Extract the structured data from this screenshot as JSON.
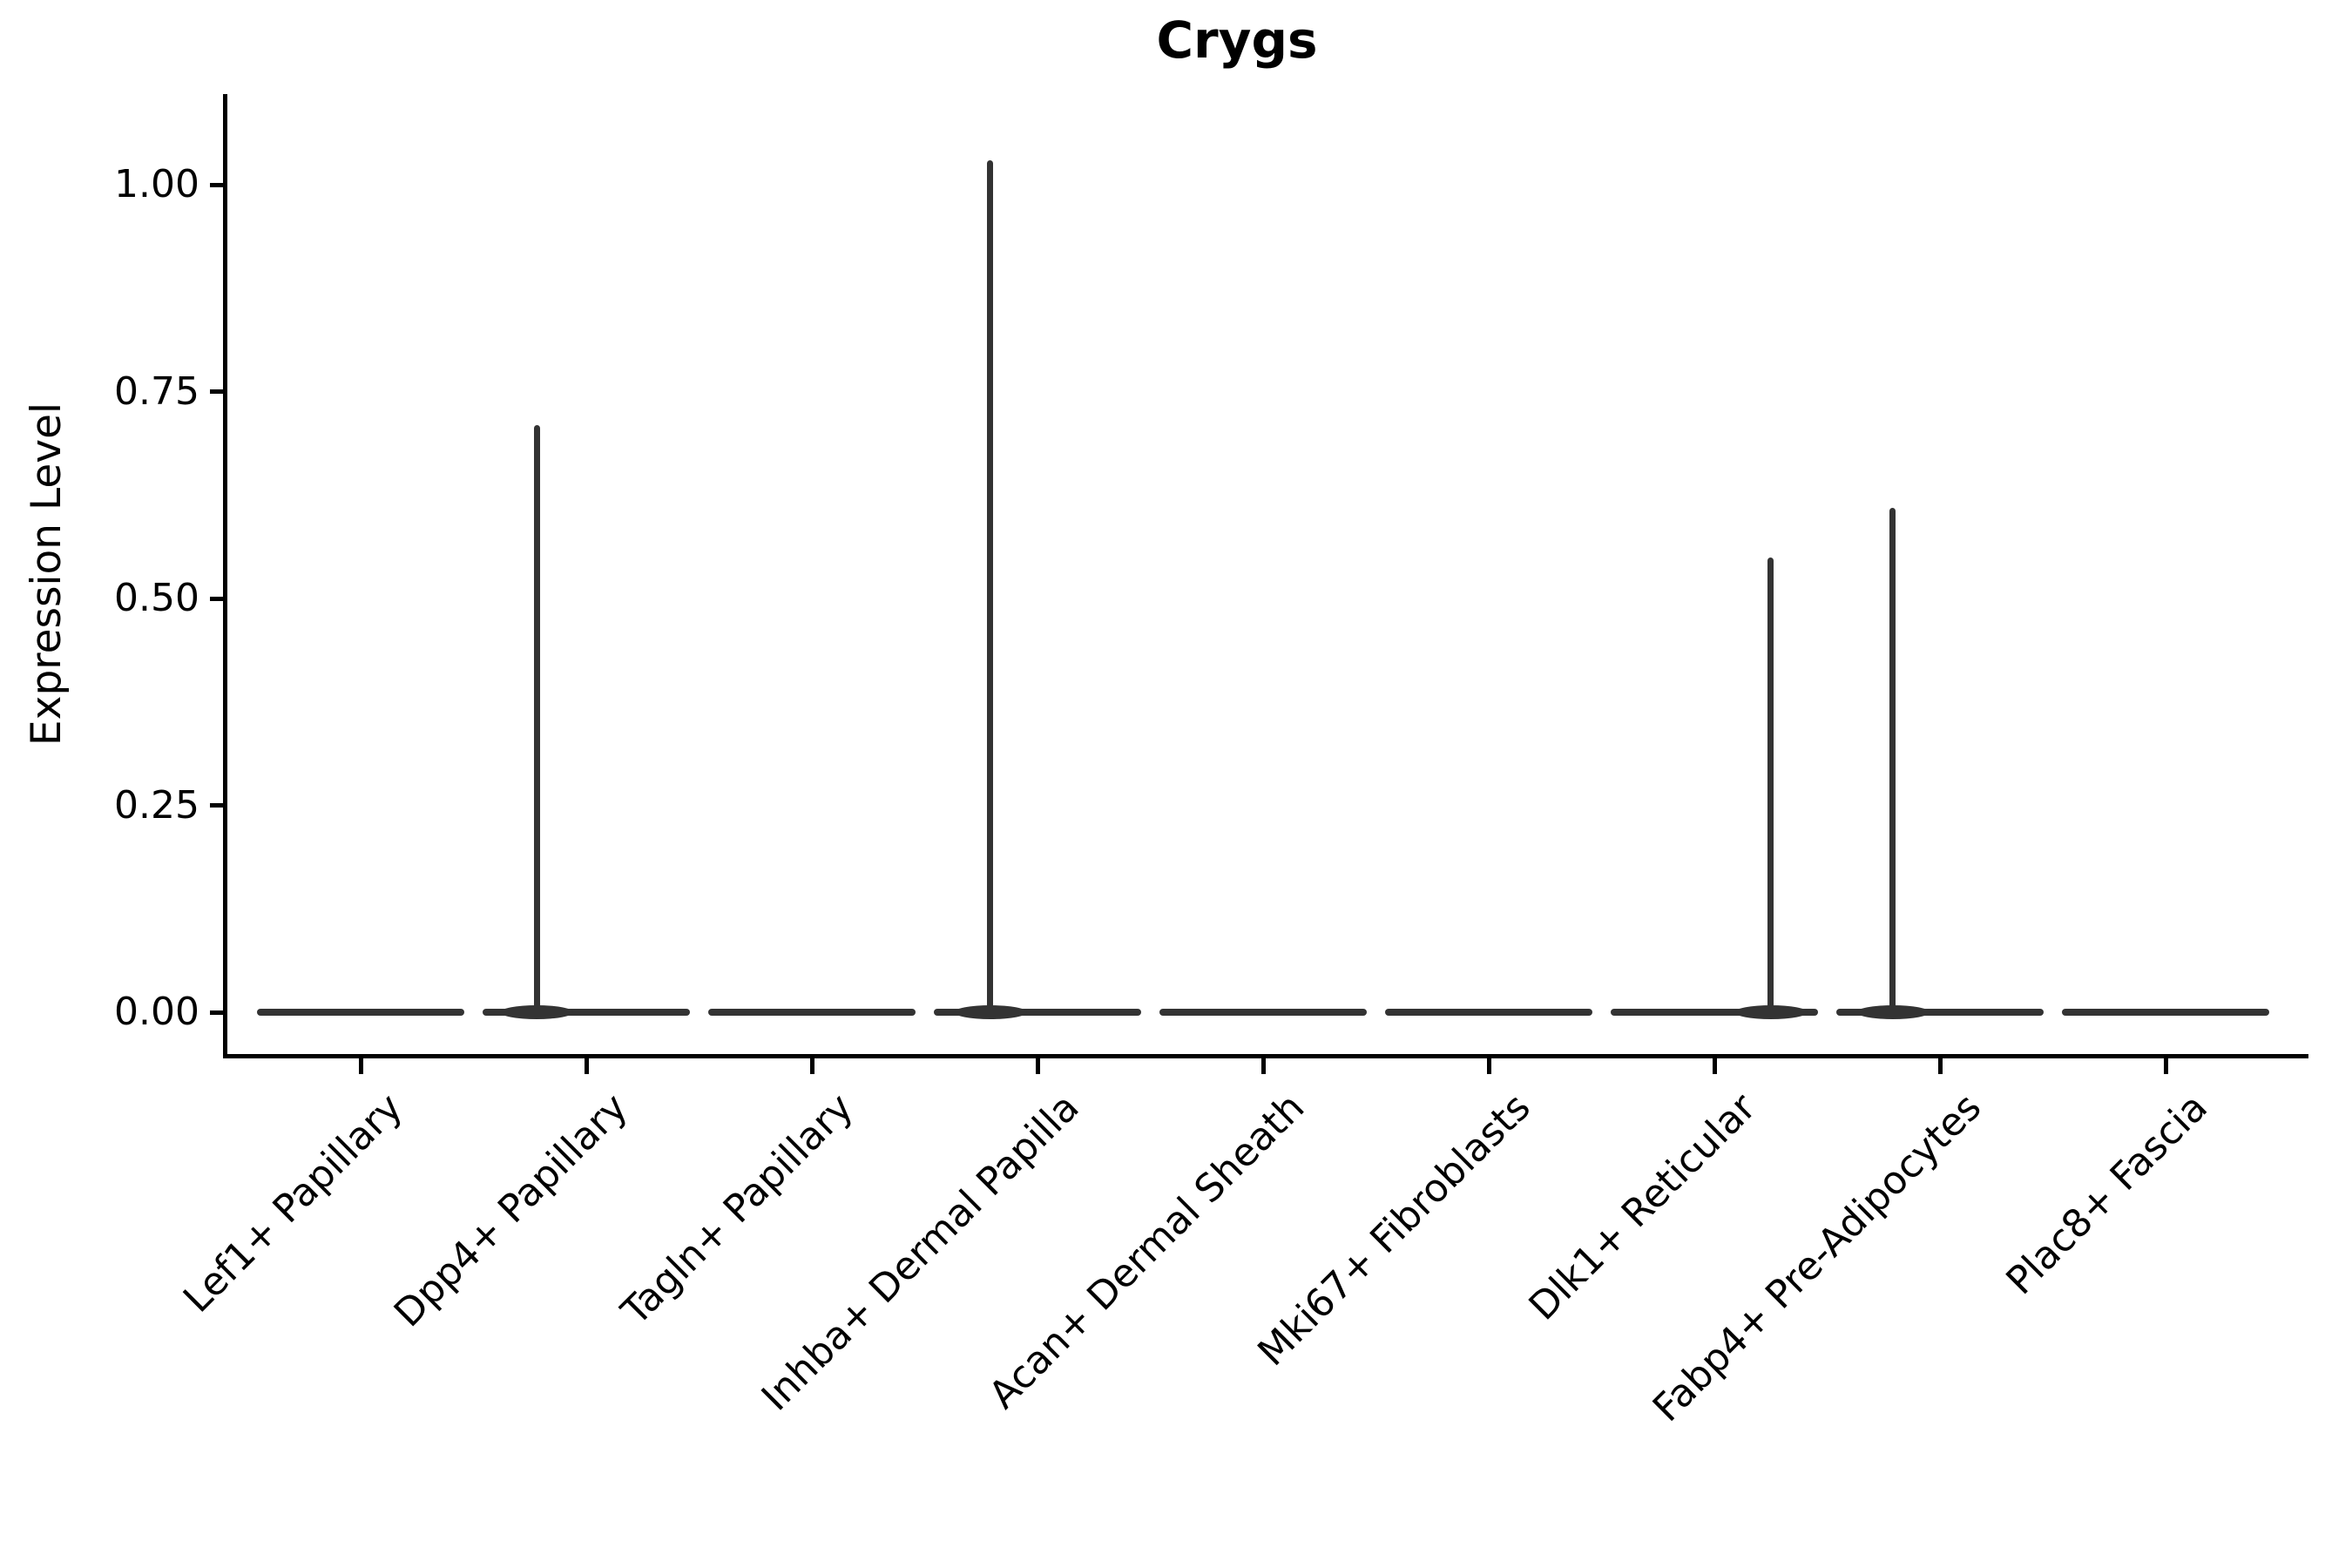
{
  "figure": {
    "background": "#ffffff"
  },
  "chart_data": {
    "type": "violin",
    "title": "Crygs",
    "xlabel": "",
    "ylabel": "Expression Level",
    "grid": false,
    "legend": false,
    "ylim": [
      -0.05,
      1.11
    ],
    "yticks": [
      {
        "label": "0.00",
        "value": 0.0
      },
      {
        "label": "0.25",
        "value": 0.25
      },
      {
        "label": "0.50",
        "value": 0.5
      },
      {
        "label": "0.75",
        "value": 0.75
      },
      {
        "label": "1.00",
        "value": 1.0
      }
    ],
    "categories": [
      "Lef1+ Papillary",
      "Dpp4+ Papillary",
      "Tagln+ Papillary",
      "Inhba+ Dermal Papilla",
      "Acan+ Dermal Sheath",
      "Mki67+ Fibroblasts",
      "Dlk1+ Reticular",
      "Fabp4+ Pre-Adipocytes",
      "Plac8+ Fascia"
    ],
    "violins": [
      {
        "category": "Lef1+ Papillary",
        "baseline_value": 0,
        "max_value": 0,
        "spike_offset": 0
      },
      {
        "category": "Dpp4+ Papillary",
        "baseline_value": 0,
        "max_value": 0.71,
        "spike_offset": -0.22
      },
      {
        "category": "Tagln+ Papillary",
        "baseline_value": 0,
        "max_value": 0,
        "spike_offset": 0
      },
      {
        "category": "Inhba+ Dermal Papilla",
        "baseline_value": 0,
        "max_value": 1.03,
        "spike_offset": -0.21
      },
      {
        "category": "Acan+ Dermal Sheath",
        "baseline_value": 0,
        "max_value": 0,
        "spike_offset": 0
      },
      {
        "category": "Mki67+ Fibroblasts",
        "baseline_value": 0,
        "max_value": 0,
        "spike_offset": 0
      },
      {
        "category": "Dlk1+ Reticular",
        "baseline_value": 0,
        "max_value": 0.55,
        "spike_offset": 0.25
      },
      {
        "category": "Fabp4+ Pre-Adipocytes",
        "baseline_value": 0,
        "max_value": 0.61,
        "spike_offset": -0.21
      },
      {
        "category": "Plac8+ Fascia",
        "baseline_value": 0,
        "max_value": 0,
        "spike_offset": 0
      }
    ],
    "colors": {
      "violin_line": "#333333",
      "axis": "#000000",
      "text": "#000000"
    }
  }
}
